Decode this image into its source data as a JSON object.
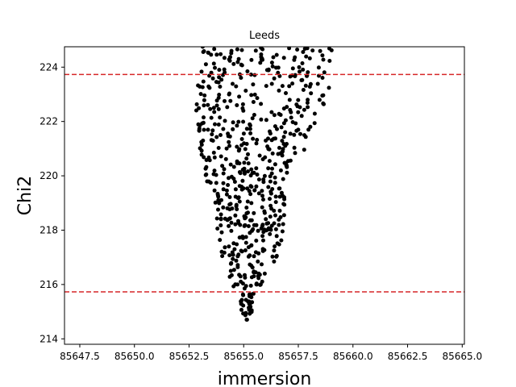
{
  "chart_data": {
    "type": "scatter",
    "title": "Leeds",
    "xlabel": "immersion",
    "ylabel": "Chi2",
    "xlim": [
      85646.8,
      85665.1
    ],
    "ylim": [
      213.8,
      224.75
    ],
    "xticks": [
      85647.5,
      85650.0,
      85652.5,
      85655.0,
      85657.5,
      85660.0,
      85662.5,
      85665.0
    ],
    "xtick_labels": [
      "85647.5",
      "85650.0",
      "85652.5",
      "85655.0",
      "85657.5",
      "85660.0",
      "85662.5",
      "85665.0"
    ],
    "yticks": [
      214,
      216,
      218,
      220,
      222,
      224
    ],
    "ytick_labels": [
      "214",
      "216",
      "218",
      "220",
      "222",
      "224"
    ],
    "grid": false,
    "point_color": "#000000",
    "reference_lines": [
      {
        "y": 223.73,
        "color": "#d62728",
        "style": "dashed"
      },
      {
        "y": 215.73,
        "color": "#d62728",
        "style": "dashed"
      }
    ],
    "point_count": 620,
    "envelope": [
      {
        "y": 214.7,
        "x": [
          85655.0,
          85655.3
        ]
      },
      {
        "y": 215.0,
        "x": [
          85654.9,
          85655.5
        ]
      },
      {
        "y": 215.5,
        "x": [
          85654.8,
          85655.6
        ]
      },
      {
        "y": 216.0,
        "x": [
          85654.4,
          85656.0
        ]
      },
      {
        "y": 216.5,
        "x": [
          85654.2,
          85656.3
        ]
      },
      {
        "y": 217.0,
        "x": [
          85654.0,
          85656.6
        ]
      },
      {
        "y": 218.0,
        "x": [
          85653.8,
          85656.8
        ]
      },
      {
        "y": 219.0,
        "x": [
          85653.7,
          85656.9
        ]
      },
      {
        "y": 220.0,
        "x": [
          85653.2,
          85656.9
        ]
      },
      {
        "y": 221.0,
        "x": [
          85653.0,
          85658.0
        ]
      },
      {
        "y": 222.0,
        "x": [
          85652.8,
          85658.4
        ]
      },
      {
        "y": 223.0,
        "x": [
          85652.8,
          85658.9
        ]
      },
      {
        "y": 224.0,
        "x": [
          85653.0,
          85659.1
        ]
      },
      {
        "y": 224.75,
        "x": [
          85653.1,
          85659.1
        ]
      }
    ]
  }
}
